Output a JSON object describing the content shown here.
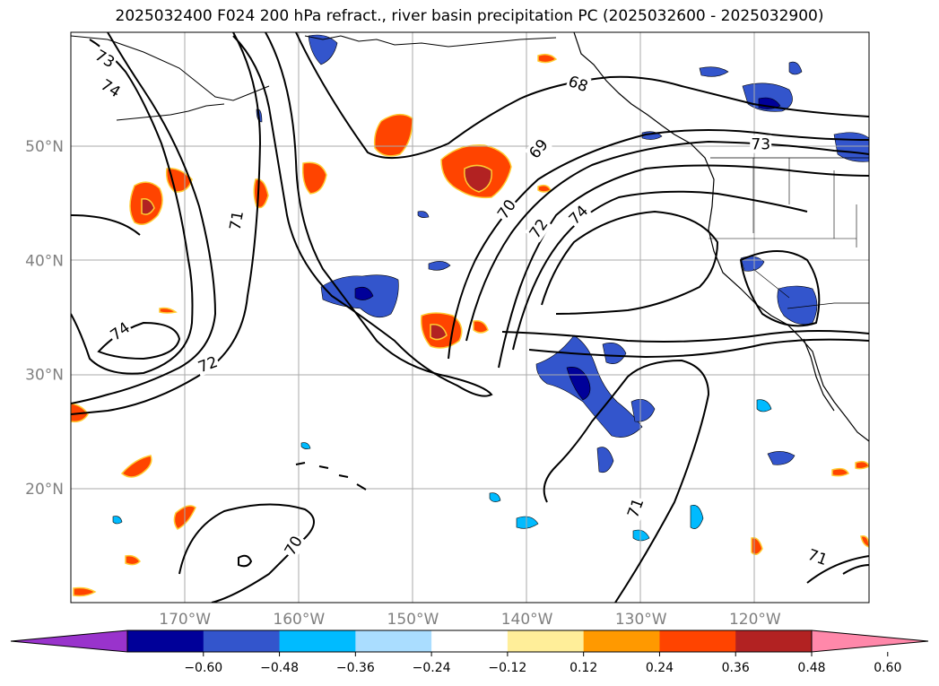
{
  "title": "2025032400 F024 200 hPa refract., river basin precipitation PC (2025032600 - 2025032900)",
  "map": {
    "lat_labels": [
      {
        "value": 50,
        "label": "50°N"
      },
      {
        "value": 40,
        "label": "40°N"
      },
      {
        "value": 30,
        "label": "30°N"
      },
      {
        "value": 20,
        "label": "20°N"
      }
    ],
    "lon_labels": [
      {
        "value": -170,
        "label": "170°W"
      },
      {
        "value": -160,
        "label": "160°W"
      },
      {
        "value": -150,
        "label": "150°W"
      },
      {
        "value": -140,
        "label": "140°W"
      },
      {
        "value": -130,
        "label": "130°W"
      },
      {
        "value": -120,
        "label": "120°W"
      }
    ],
    "extent": {
      "lon_min": -180,
      "lon_max": -110,
      "lat_min": 10,
      "lat_max": 60
    },
    "contour_labels": [
      {
        "text": "73",
        "lon": -177.0,
        "lat": 57.7,
        "rot": 30
      },
      {
        "text": "74",
        "lon": -176.5,
        "lat": 55.1,
        "rot": 32
      },
      {
        "text": "71",
        "lon": -165.5,
        "lat": 43.5,
        "rot": -80
      },
      {
        "text": "74",
        "lon": -175.7,
        "lat": 33.8,
        "rot": -35
      },
      {
        "text": "72",
        "lon": -168.0,
        "lat": 30.9,
        "rot": -20
      },
      {
        "text": "70",
        "lon": -160.5,
        "lat": 15.0,
        "rot": -60
      },
      {
        "text": "68",
        "lon": -135.5,
        "lat": 55.5,
        "rot": 20
      },
      {
        "text": "69",
        "lon": -139.0,
        "lat": 49.8,
        "rot": -50
      },
      {
        "text": "70",
        "lon": -141.8,
        "lat": 44.5,
        "rot": -55
      },
      {
        "text": "72",
        "lon": -139.0,
        "lat": 42.8,
        "rot": -55
      },
      {
        "text": "74",
        "lon": -135.5,
        "lat": 44.0,
        "rot": -45
      },
      {
        "text": "73",
        "lon": -119.5,
        "lat": 50.2,
        "rot": 0
      },
      {
        "text": "71",
        "lon": -130.5,
        "lat": 18.3,
        "rot": -70
      },
      {
        "text": "71",
        "lon": -114.5,
        "lat": 14.0,
        "rot": 20
      }
    ]
  },
  "colorbar": {
    "levels": [
      "−0.60",
      "−0.48",
      "−0.36",
      "−0.24",
      "−0.12",
      "0.12",
      "0.24",
      "0.36",
      "0.48",
      "0.60"
    ],
    "colors": [
      "#9933cc",
      "#000099",
      "#3355cc",
      "#00bbff",
      "#aaddff",
      "#ffffff",
      "#ffee99",
      "#ff9900",
      "#ff4400",
      "#b22222",
      "#ff88aa"
    ],
    "extend": "both"
  },
  "colors": {
    "grid": "#aaaaaa",
    "coast": "#000000",
    "contour": "#000000",
    "label": "#808080"
  }
}
